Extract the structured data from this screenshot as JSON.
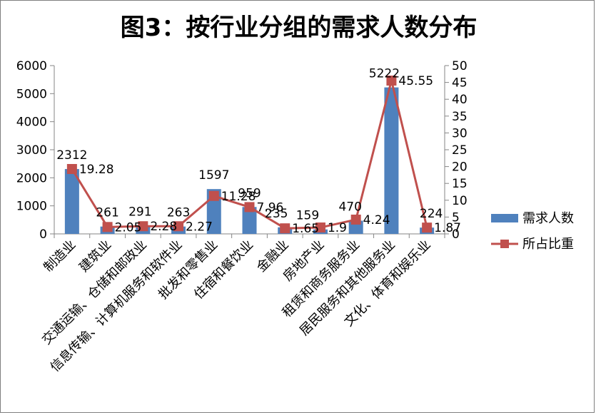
{
  "chart_data": {
    "type": "bar",
    "title": "图3：按行业分组的需求人数分布",
    "categories": [
      "制造业",
      "建筑业",
      "交通运输、仓储和邮政业",
      "信息传输、计算机服务和软件业",
      "批发和零售业",
      "住宿和餐饮业",
      "金融业",
      "房地产业",
      "租赁和商务服务业",
      "居民服务和其他服务业",
      "文化、体育和娱乐业"
    ],
    "series": [
      {
        "name": "需求人数",
        "type": "bar",
        "axis": "left",
        "color": "#4f81bd",
        "values": [
          2312,
          261,
          291,
          263,
          1597,
          959,
          235,
          159,
          470,
          5222,
          224
        ],
        "labels": [
          "2312",
          "261",
          "291",
          "263",
          "1597",
          "959",
          "235",
          "159",
          "470",
          "5222",
          "224"
        ]
      },
      {
        "name": "所占比重",
        "type": "line",
        "axis": "right",
        "color": "#c0504d",
        "values": [
          19.28,
          2.05,
          2.28,
          2.27,
          11.28,
          7.96,
          1.65,
          1.9,
          4.24,
          45.55,
          1.87
        ],
        "labels": [
          "19.28",
          "2.05",
          "2.28",
          "2.27",
          "11.28",
          "7.96",
          "1.65",
          "1.9",
          "4.24",
          "45.55",
          "1.87"
        ]
      }
    ],
    "y_left": {
      "ylim": [
        0,
        6000
      ],
      "ticks": [
        "0",
        "1000",
        "2000",
        "3000",
        "4000",
        "5000",
        "6000"
      ]
    },
    "y_right": {
      "ylim": [
        0,
        50
      ],
      "ticks": [
        "0",
        "5",
        "10",
        "15",
        "20",
        "25",
        "30",
        "35",
        "40",
        "45",
        "50"
      ]
    },
    "grid": false,
    "legend": {
      "position": "right",
      "items": [
        "需求人数",
        "所占比重"
      ]
    }
  }
}
